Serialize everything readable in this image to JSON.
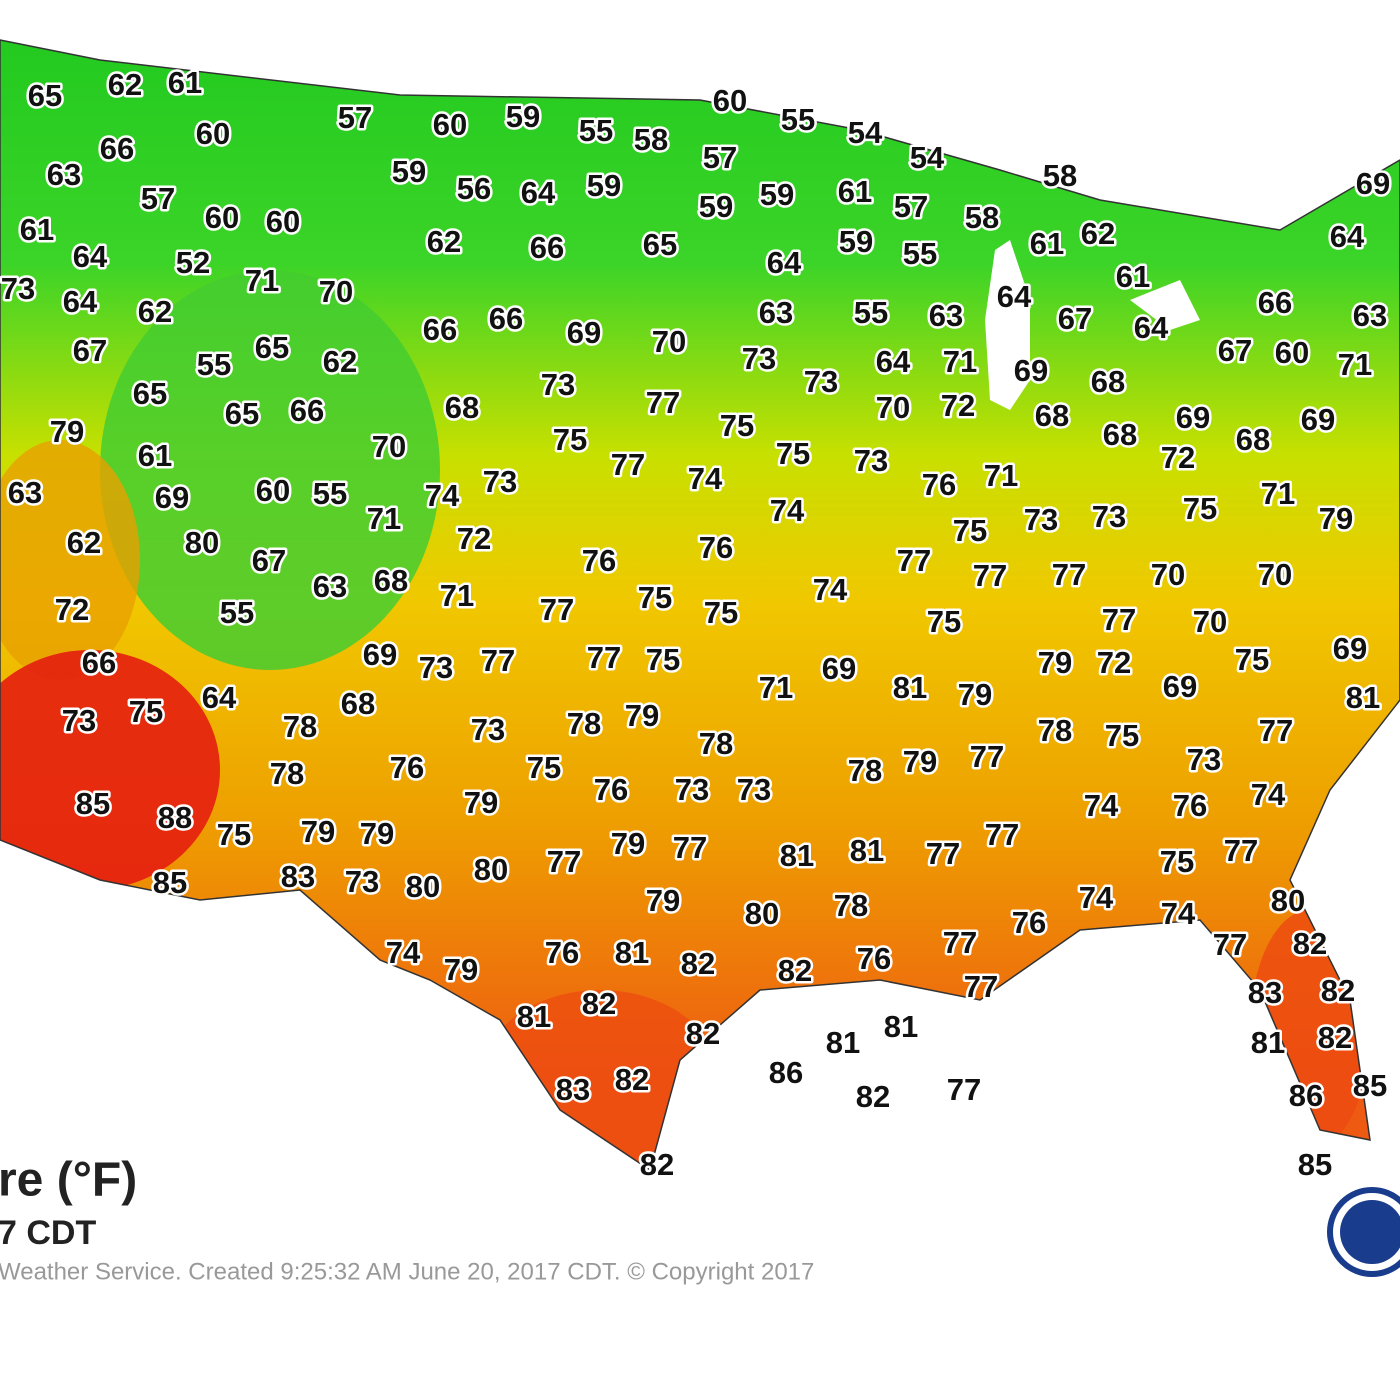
{
  "title": "re (°F)",
  "subtitle": "7 CDT",
  "credit": "Weather Service. Created 9:25:32 AM June 20, 2017 CDT. © Copyright 2017",
  "stations": [
    65,
    62,
    61,
    60,
    55,
    54,
    57,
    60,
    59,
    55,
    58,
    57,
    54,
    66,
    60,
    69,
    63,
    59,
    56,
    64,
    59,
    59,
    59,
    61,
    57,
    58,
    58,
    57,
    60,
    60,
    61,
    64,
    64,
    52,
    62,
    66,
    65,
    64,
    59,
    55,
    61,
    62,
    73,
    71,
    70,
    64,
    62,
    61,
    64,
    66,
    66,
    69,
    70,
    63,
    55,
    63,
    67,
    64,
    66,
    63,
    67,
    55,
    65,
    62,
    73,
    73,
    64,
    71,
    69,
    68,
    67,
    60,
    71,
    65,
    73,
    77,
    70,
    72,
    79,
    65,
    66,
    68,
    75,
    68,
    68,
    69,
    68,
    69,
    61,
    70,
    75,
    77,
    74,
    75,
    73,
    76,
    71,
    72,
    63,
    69,
    60,
    55,
    74,
    73,
    71,
    74,
    73,
    73,
    75,
    71,
    79,
    62,
    80,
    72,
    67,
    76,
    76,
    75,
    77,
    77,
    77,
    70,
    70,
    63,
    68,
    71,
    72,
    55,
    77,
    75,
    75,
    74,
    75,
    77,
    70,
    66,
    69,
    73,
    77,
    77,
    75,
    71,
    69,
    81,
    79,
    79,
    72,
    69,
    75,
    69,
    73,
    75,
    64,
    68,
    78,
    73,
    78,
    79,
    78,
    78,
    75,
    77,
    81,
    78,
    76,
    75,
    76,
    73,
    73,
    78,
    79,
    77,
    73,
    85,
    88,
    79,
    74,
    76,
    74,
    75,
    79,
    79,
    79,
    77,
    77,
    81,
    81,
    77,
    77,
    75,
    77,
    85,
    83,
    73,
    80,
    80,
    79,
    80,
    78,
    74,
    80,
    74,
    74,
    79,
    76,
    81,
    82,
    82,
    76,
    77,
    76,
    77,
    82,
    81,
    82,
    77,
    83,
    82,
    82,
    81,
    81,
    81,
    82,
    86,
    82,
    77,
    83,
    82,
    86,
    85,
    82,
    85
  ]
}
